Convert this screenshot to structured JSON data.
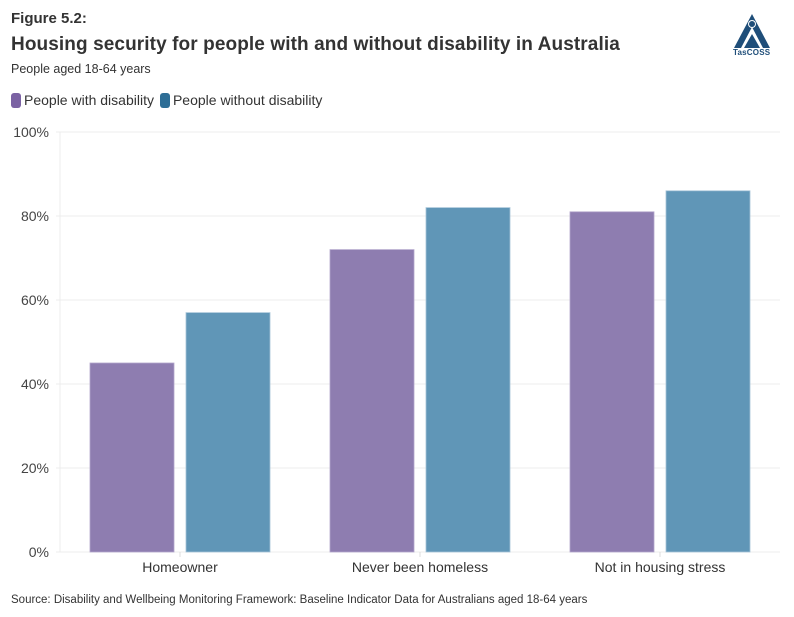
{
  "header": {
    "figure_label": "Figure 5.2:",
    "title": "Housing security for people with and without disability in Australia",
    "subtitle": "People aged 18-64 years",
    "logo_text": "TasCOSS"
  },
  "legend": [
    {
      "label": "People with disability",
      "color": "#7b62a3"
    },
    {
      "label": "People without disability",
      "color": "#2e6e96"
    }
  ],
  "footer": {
    "source": "Source: Disability and Wellbeing Monitoring Framework: Baseline Indicator Data for Australians aged 18-64 years"
  },
  "chart_data": {
    "type": "bar",
    "title": "Housing security for people with and without disability in Australia",
    "subtitle": "People aged 18-64 years",
    "xlabel": "",
    "ylabel": "",
    "categories": [
      "Homeowner",
      "Never been homeless",
      "Not in housing stress"
    ],
    "series": [
      {
        "name": "People with disability",
        "color": "#8e7db0",
        "values": [
          45,
          72,
          81
        ]
      },
      {
        "name": "People without disability",
        "color": "#6096b7",
        "values": [
          57,
          82,
          86
        ]
      }
    ],
    "ylim": [
      0,
      100
    ],
    "yticks": [
      0,
      20,
      40,
      60,
      80,
      100
    ],
    "ytick_labels": [
      "0%",
      "20%",
      "40%",
      "60%",
      "80%",
      "100%"
    ],
    "grid": true,
    "legend_position": "top-left"
  }
}
